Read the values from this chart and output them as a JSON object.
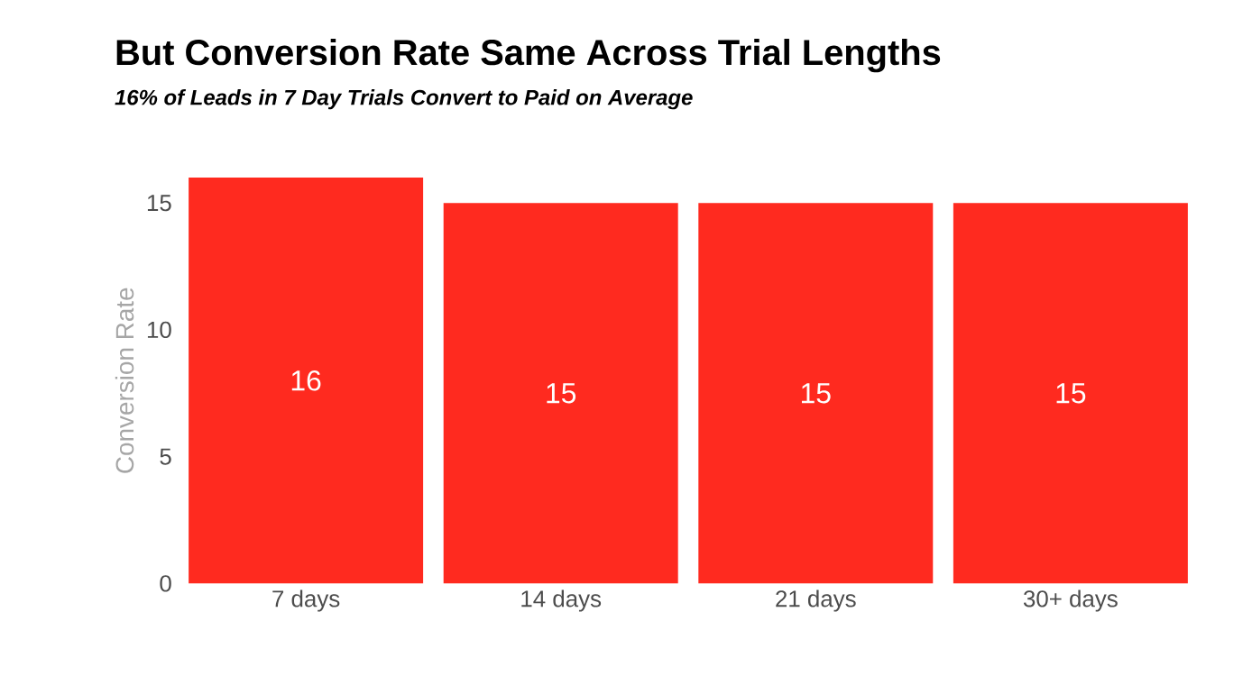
{
  "chart_data": {
    "type": "bar",
    "title": "But Conversion Rate Same Across Trial Lengths",
    "subtitle": "16% of Leads in 7 Day Trials Convert to Paid on Average",
    "ylabel": "Conversion Rate",
    "categories": [
      "7 days",
      "14 days",
      "21 days",
      "30+ days"
    ],
    "values": [
      16,
      15,
      15,
      15
    ],
    "color": "#ff2a1f",
    "data_labels": true,
    "ylim": [
      0,
      16
    ],
    "yticks": [
      0,
      5,
      10,
      15
    ],
    "grid": false
  }
}
